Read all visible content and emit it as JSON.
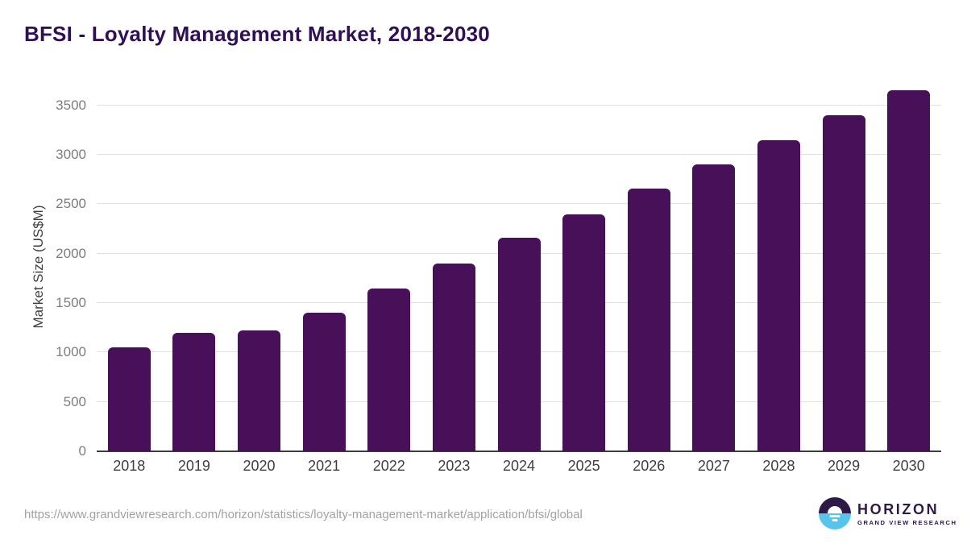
{
  "title": "BFSI - Loyalty Management Market, 2018-2030",
  "chart_data": {
    "type": "bar",
    "title": "BFSI - Loyalty Management Market, 2018-2030",
    "categories": [
      "2018",
      "2019",
      "2020",
      "2021",
      "2022",
      "2023",
      "2024",
      "2025",
      "2026",
      "2027",
      "2028",
      "2029",
      "2030"
    ],
    "values": [
      1050,
      1200,
      1220,
      1400,
      1645,
      1900,
      2160,
      2400,
      2655,
      2900,
      3150,
      3400,
      3650
    ],
    "xlabel": "",
    "ylabel": "Market Size (US$M)",
    "ylim": [
      0,
      3750
    ],
    "yticks": [
      0,
      500,
      1000,
      1500,
      2000,
      2500,
      3000,
      3500
    ],
    "grid": true,
    "legend": "none",
    "bar_color": "#481058"
  },
  "footer": {
    "source_url": "https://www.grandviewresearch.com/horizon/statistics/loyalty-management-market/application/bfsi/global",
    "logo": {
      "name": "HORIZON",
      "subtitle": "GRAND VIEW RESEARCH"
    }
  },
  "colors": {
    "bar": "#481058",
    "title": "#2f1054",
    "gridline": "#e0e0e0",
    "axis_line": "#3c3c3c",
    "ytick_text": "#7d7d7d",
    "xtick_text": "#3f3f3f",
    "source_text": "#a2a2a2",
    "logo_purple": "#2e1a47",
    "logo_blue": "#56c5ec"
  }
}
